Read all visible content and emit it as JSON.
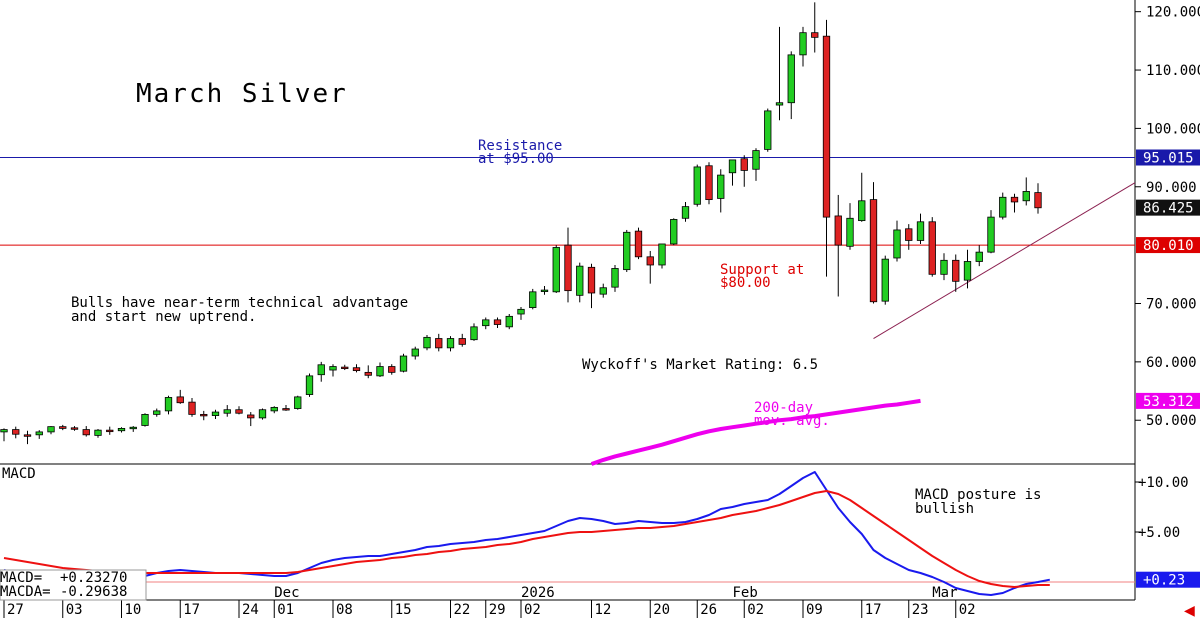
{
  "chart_data": [
    {
      "type": "candlestick",
      "title": "March Silver",
      "ylim": [
        42.5,
        122
      ],
      "y_ticks": [
        "120.000",
        "110.000",
        "100.000",
        "90.000",
        "70.000",
        "60.000",
        "50.000"
      ],
      "y_tick_values": [
        120,
        110,
        100,
        90,
        70,
        60,
        50
      ],
      "x_month_labels": [
        {
          "label": "Dec",
          "index": 23
        },
        {
          "label": "2026",
          "index": 44
        },
        {
          "label": "Feb",
          "index": 62
        },
        {
          "label": "Mar",
          "index": 79
        }
      ],
      "x_week_labels": [
        {
          "label": "27",
          "index": 0
        },
        {
          "label": "03",
          "index": 5
        },
        {
          "label": "10",
          "index": 10
        },
        {
          "label": "17",
          "index": 15
        },
        {
          "label": "24",
          "index": 20
        },
        {
          "label": "01",
          "index": 23
        },
        {
          "label": "08",
          "index": 28
        },
        {
          "label": "15",
          "index": 33
        },
        {
          "label": "22",
          "index": 38
        },
        {
          "label": "29",
          "index": 41
        },
        {
          "label": "02",
          "index": 44
        },
        {
          "label": "12",
          "index": 50
        },
        {
          "label": "20",
          "index": 55
        },
        {
          "label": "26",
          "index": 59
        },
        {
          "label": "02",
          "index": 63
        },
        {
          "label": "09",
          "index": 68
        },
        {
          "label": "17",
          "index": 73
        },
        {
          "label": "23",
          "index": 77
        },
        {
          "label": "02",
          "index": 81
        }
      ],
      "candles": [
        {
          "o": 48.0,
          "h": 48.6,
          "l": 46.4,
          "c": 48.4
        },
        {
          "o": 48.4,
          "h": 48.9,
          "l": 46.9,
          "c": 47.6
        },
        {
          "o": 47.5,
          "h": 48.2,
          "l": 45.9,
          "c": 47.4
        },
        {
          "o": 47.5,
          "h": 48.3,
          "l": 46.8,
          "c": 48.0
        },
        {
          "o": 48.0,
          "h": 49.0,
          "l": 47.6,
          "c": 48.9
        },
        {
          "o": 48.9,
          "h": 49.2,
          "l": 48.3,
          "c": 48.6
        },
        {
          "o": 48.7,
          "h": 49.0,
          "l": 48.2,
          "c": 48.6
        },
        {
          "o": 48.4,
          "h": 49.0,
          "l": 47.2,
          "c": 47.5
        },
        {
          "o": 47.4,
          "h": 48.5,
          "l": 47.0,
          "c": 48.3
        },
        {
          "o": 48.3,
          "h": 48.9,
          "l": 47.5,
          "c": 48.2
        },
        {
          "o": 48.2,
          "h": 48.8,
          "l": 47.9,
          "c": 48.6
        },
        {
          "o": 48.6,
          "h": 49.0,
          "l": 48.0,
          "c": 48.8
        },
        {
          "o": 49.1,
          "h": 51.2,
          "l": 48.9,
          "c": 51.0
        },
        {
          "o": 51.0,
          "h": 52.0,
          "l": 50.6,
          "c": 51.6
        },
        {
          "o": 51.6,
          "h": 54.2,
          "l": 51.0,
          "c": 53.9
        },
        {
          "o": 54.0,
          "h": 55.2,
          "l": 52.8,
          "c": 53.0
        },
        {
          "o": 53.1,
          "h": 53.8,
          "l": 50.6,
          "c": 51.0
        },
        {
          "o": 51.0,
          "h": 51.6,
          "l": 50.0,
          "c": 50.8
        },
        {
          "o": 50.8,
          "h": 51.8,
          "l": 50.2,
          "c": 51.4
        },
        {
          "o": 51.2,
          "h": 52.6,
          "l": 50.6,
          "c": 51.8
        },
        {
          "o": 51.8,
          "h": 52.4,
          "l": 51.0,
          "c": 51.2
        },
        {
          "o": 50.9,
          "h": 51.4,
          "l": 49.0,
          "c": 50.4
        },
        {
          "o": 50.4,
          "h": 52.0,
          "l": 50.1,
          "c": 51.8
        },
        {
          "o": 51.6,
          "h": 52.4,
          "l": 51.2,
          "c": 52.2
        },
        {
          "o": 52.0,
          "h": 52.6,
          "l": 51.6,
          "c": 51.9
        },
        {
          "o": 52.0,
          "h": 54.2,
          "l": 51.8,
          "c": 54.0
        },
        {
          "o": 54.4,
          "h": 58.0,
          "l": 54.0,
          "c": 57.6
        },
        {
          "o": 57.8,
          "h": 60.0,
          "l": 56.6,
          "c": 59.5
        },
        {
          "o": 58.6,
          "h": 59.6,
          "l": 57.5,
          "c": 59.2
        },
        {
          "o": 59.1,
          "h": 59.5,
          "l": 58.6,
          "c": 59.0
        },
        {
          "o": 59.0,
          "h": 59.6,
          "l": 58.2,
          "c": 58.5
        },
        {
          "o": 58.2,
          "h": 59.4,
          "l": 57.2,
          "c": 57.7
        },
        {
          "o": 57.6,
          "h": 59.9,
          "l": 57.4,
          "c": 59.2
        },
        {
          "o": 59.2,
          "h": 59.6,
          "l": 57.8,
          "c": 58.2
        },
        {
          "o": 58.4,
          "h": 61.4,
          "l": 58.2,
          "c": 61.0
        },
        {
          "o": 61.0,
          "h": 62.6,
          "l": 60.4,
          "c": 62.2
        },
        {
          "o": 62.4,
          "h": 64.6,
          "l": 62.0,
          "c": 64.2
        },
        {
          "o": 64.0,
          "h": 64.8,
          "l": 61.8,
          "c": 62.4
        },
        {
          "o": 62.4,
          "h": 64.4,
          "l": 61.8,
          "c": 64.0
        },
        {
          "o": 64.0,
          "h": 64.8,
          "l": 62.6,
          "c": 63.0
        },
        {
          "o": 63.8,
          "h": 66.6,
          "l": 63.6,
          "c": 66.0
        },
        {
          "o": 66.2,
          "h": 67.6,
          "l": 65.6,
          "c": 67.2
        },
        {
          "o": 67.2,
          "h": 67.6,
          "l": 65.8,
          "c": 66.4
        },
        {
          "o": 66.0,
          "h": 68.2,
          "l": 65.6,
          "c": 67.8
        },
        {
          "o": 68.2,
          "h": 69.4,
          "l": 67.2,
          "c": 69.0
        },
        {
          "o": 69.3,
          "h": 72.5,
          "l": 69.0,
          "c": 72.0
        },
        {
          "o": 72.3,
          "h": 73.0,
          "l": 71.5,
          "c": 72.3
        },
        {
          "o": 72.0,
          "h": 80.0,
          "l": 71.8,
          "c": 79.6
        },
        {
          "o": 80.0,
          "h": 83.0,
          "l": 70.2,
          "c": 72.2
        },
        {
          "o": 71.4,
          "h": 77.0,
          "l": 70.2,
          "c": 76.4
        },
        {
          "o": 76.2,
          "h": 76.8,
          "l": 69.2,
          "c": 71.8
        },
        {
          "o": 71.6,
          "h": 73.4,
          "l": 71.0,
          "c": 72.7
        },
        {
          "o": 72.8,
          "h": 76.6,
          "l": 72.0,
          "c": 76.0
        },
        {
          "o": 75.8,
          "h": 82.6,
          "l": 75.4,
          "c": 82.2
        },
        {
          "o": 82.4,
          "h": 83.0,
          "l": 77.6,
          "c": 78.0
        },
        {
          "o": 78.0,
          "h": 79.0,
          "l": 73.4,
          "c": 76.6
        },
        {
          "o": 76.6,
          "h": 80.2,
          "l": 76.0,
          "c": 80.2
        },
        {
          "o": 80.2,
          "h": 84.6,
          "l": 80.0,
          "c": 84.4
        },
        {
          "o": 84.6,
          "h": 87.4,
          "l": 84.0,
          "c": 86.6
        },
        {
          "o": 87.0,
          "h": 93.8,
          "l": 86.6,
          "c": 93.4
        },
        {
          "o": 93.6,
          "h": 94.2,
          "l": 87.0,
          "c": 87.8
        },
        {
          "o": 88.0,
          "h": 93.0,
          "l": 85.6,
          "c": 92.0
        },
        {
          "o": 92.4,
          "h": 94.6,
          "l": 90.2,
          "c": 94.6
        },
        {
          "o": 94.8,
          "h": 95.4,
          "l": 90.0,
          "c": 92.8
        },
        {
          "o": 93.0,
          "h": 96.6,
          "l": 91.0,
          "c": 96.2
        },
        {
          "o": 96.4,
          "h": 103.4,
          "l": 96.0,
          "c": 103.0
        },
        {
          "o": 104.0,
          "h": 117.4,
          "l": 101.4,
          "c": 104.4
        },
        {
          "o": 104.4,
          "h": 113.2,
          "l": 101.6,
          "c": 112.6
        },
        {
          "o": 112.6,
          "h": 117.4,
          "l": 110.6,
          "c": 116.4
        },
        {
          "o": 116.4,
          "h": 121.6,
          "l": 113.0,
          "c": 115.6
        },
        {
          "o": 115.8,
          "h": 118.6,
          "l": 74.6,
          "c": 84.8
        },
        {
          "o": 85.0,
          "h": 88.6,
          "l": 71.2,
          "c": 80.0
        },
        {
          "o": 79.8,
          "h": 87.2,
          "l": 79.2,
          "c": 84.6
        },
        {
          "o": 84.2,
          "h": 92.4,
          "l": 84.0,
          "c": 87.6
        },
        {
          "o": 87.8,
          "h": 90.8,
          "l": 70.0,
          "c": 70.3
        },
        {
          "o": 70.4,
          "h": 78.2,
          "l": 69.8,
          "c": 77.6
        },
        {
          "o": 77.8,
          "h": 84.2,
          "l": 77.2,
          "c": 82.6
        },
        {
          "o": 82.8,
          "h": 83.6,
          "l": 79.2,
          "c": 80.8
        },
        {
          "o": 80.8,
          "h": 85.4,
          "l": 80.2,
          "c": 84.0
        },
        {
          "o": 84.0,
          "h": 84.8,
          "l": 74.6,
          "c": 75.0
        },
        {
          "o": 75.0,
          "h": 78.6,
          "l": 74.0,
          "c": 77.4
        },
        {
          "o": 77.4,
          "h": 78.4,
          "l": 72.0,
          "c": 73.8
        },
        {
          "o": 74.0,
          "h": 79.2,
          "l": 72.6,
          "c": 77.2
        },
        {
          "o": 77.2,
          "h": 80.0,
          "l": 76.4,
          "c": 78.8
        },
        {
          "o": 78.8,
          "h": 86.0,
          "l": 78.6,
          "c": 84.8
        },
        {
          "o": 84.8,
          "h": 89.0,
          "l": 84.4,
          "c": 88.2
        },
        {
          "o": 88.2,
          "h": 88.8,
          "l": 85.6,
          "c": 87.4
        },
        {
          "o": 87.6,
          "h": 91.6,
          "l": 86.8,
          "c": 89.2
        },
        {
          "o": 89.0,
          "h": 90.6,
          "l": 85.4,
          "c": 86.4
        }
      ],
      "moving_average": {
        "label": "200-day\nmov. avg.",
        "start_index": 50,
        "values": [
          42.5,
          43.2,
          43.8,
          44.3,
          44.8,
          45.3,
          45.8,
          46.4,
          47.0,
          47.6,
          48.1,
          48.5,
          48.8,
          49.1,
          49.4,
          49.7,
          50.0,
          50.2,
          50.5,
          50.7,
          51.0,
          51.3,
          51.6,
          51.9,
          52.2,
          52.5,
          52.7,
          53.0,
          53.312
        ]
      },
      "resistance": {
        "value": 95.015,
        "label": "Resistance\nat $95.00"
      },
      "support": {
        "value": 80.01,
        "label": "Support at\n$80.00"
      },
      "trendline": [
        {
          "index": 74,
          "value": 64.0
        },
        {
          "index": 92,
          "value": 85.6
        }
      ],
      "last_price": 86.425,
      "price_badges": [
        {
          "text": "95.015",
          "value": 95.015,
          "style": "resistance"
        },
        {
          "text": "86.425",
          "value": 86.425,
          "style": "last"
        },
        {
          "text": "80.010",
          "value": 80.01,
          "style": "support"
        },
        {
          "text": "53.312",
          "value": 53.312,
          "style": "ma"
        }
      ],
      "annotations": [
        {
          "text": "Bulls have near-term technical advantage\nand start new uptrend.",
          "color": "#000000"
        },
        {
          "text": "Wyckoff's Market Rating: 6.5",
          "color": "#000000"
        }
      ],
      "colors": {
        "up": "#22cc22",
        "down": "#dd2222",
        "resistance": "#1a1aaa",
        "support": "#dd0000",
        "ma": "#ee00ee",
        "trend": "#8b2050"
      }
    },
    {
      "type": "line",
      "title": "MACD",
      "ylim": [
        -1.8,
        11.8
      ],
      "y_ticks": [
        "+10.00",
        "+5.00"
      ],
      "y_tick_values": [
        10,
        5
      ],
      "zero_value": 0,
      "series": [
        {
          "name": "MACD",
          "color": "#1a1aee",
          "values": [
            1.2,
            0.9,
            0.6,
            0.4,
            0.3,
            0.2,
            0.2,
            0.1,
            0.1,
            0.1,
            0.2,
            0.3,
            0.6,
            0.9,
            1.1,
            1.2,
            1.1,
            1.0,
            0.9,
            0.9,
            0.9,
            0.8,
            0.7,
            0.6,
            0.6,
            0.9,
            1.4,
            1.9,
            2.2,
            2.4,
            2.5,
            2.6,
            2.6,
            2.8,
            3.0,
            3.2,
            3.5,
            3.6,
            3.8,
            3.9,
            4.0,
            4.2,
            4.3,
            4.5,
            4.7,
            4.9,
            5.1,
            5.6,
            6.1,
            6.4,
            6.3,
            6.1,
            5.8,
            5.9,
            6.1,
            6.0,
            5.9,
            5.9,
            6.0,
            6.3,
            6.7,
            7.3,
            7.5,
            7.8,
            8.0,
            8.2,
            8.8,
            9.6,
            10.4,
            11.0,
            9.2,
            7.4,
            6.0,
            4.8,
            3.2,
            2.4,
            1.8,
            1.2,
            0.9,
            0.5,
            0.0,
            -0.6,
            -0.9,
            -1.2,
            -1.3,
            -1.1,
            -0.6,
            -0.2,
            0.0,
            0.23
          ]
        },
        {
          "name": "MACDA",
          "color": "#ee1111",
          "values": [
            2.4,
            2.2,
            2.0,
            1.8,
            1.6,
            1.4,
            1.3,
            1.2,
            1.1,
            1.0,
            0.9,
            0.9,
            0.9,
            0.9,
            0.9,
            0.9,
            0.9,
            0.9,
            0.9,
            0.9,
            0.9,
            0.9,
            0.9,
            0.9,
            0.9,
            1.0,
            1.2,
            1.4,
            1.6,
            1.8,
            2.0,
            2.1,
            2.2,
            2.4,
            2.5,
            2.7,
            2.8,
            3.0,
            3.1,
            3.3,
            3.4,
            3.5,
            3.7,
            3.8,
            4.0,
            4.3,
            4.5,
            4.7,
            4.9,
            5.0,
            5.0,
            5.1,
            5.2,
            5.3,
            5.4,
            5.4,
            5.5,
            5.6,
            5.8,
            6.0,
            6.2,
            6.4,
            6.7,
            6.9,
            7.1,
            7.4,
            7.7,
            8.1,
            8.5,
            8.9,
            9.1,
            8.8,
            8.2,
            7.4,
            6.6,
            5.8,
            5.0,
            4.2,
            3.4,
            2.6,
            1.9,
            1.2,
            0.6,
            0.1,
            -0.2,
            -0.4,
            -0.5,
            -0.4,
            -0.3,
            -0.29638
          ]
        }
      ],
      "annotations": [
        {
          "text": "MACD posture is\nbullish",
          "color": "#000000"
        }
      ],
      "readouts": [
        {
          "label": "MACD=",
          "value": "+0.23270"
        },
        {
          "label": "MACDA=",
          "value": "-0.29638"
        }
      ],
      "price_badges": [
        {
          "text": "+0.23",
          "value": 0.23,
          "style": "macd"
        }
      ]
    }
  ]
}
